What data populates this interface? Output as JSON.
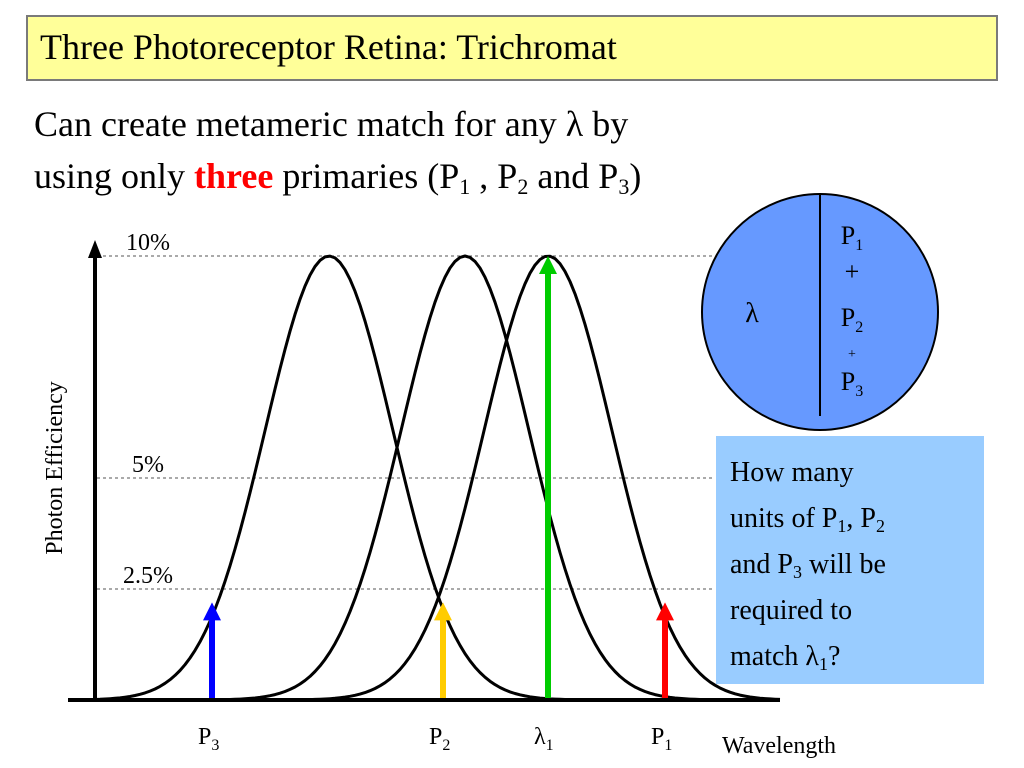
{
  "slide": {
    "title": "Three Photoreceptor Retina:  Trichromat",
    "subtitle": {
      "line1_a": "Can create metameric match for any ",
      "line1_lambda": "λ",
      "line1_b": " by",
      "line2_a": "using only ",
      "line2_highlight": "three",
      "line2_b": " primaries (P",
      "sub1": "1",
      "line2_c": " , P",
      "sub2": "2",
      "line2_d": " and P",
      "sub3": "3",
      "line2_e": ")"
    },
    "question": {
      "l1": "How many",
      "l2_a": "units of P",
      "l2_s1": "1",
      "l2_b": ", P",
      "l2_s2": "2",
      "l3_a": "and P",
      "l3_s3": "3",
      "l3_b": " will be",
      "l4": "required to",
      "l5_a": "match λ",
      "l5_s": "1",
      "l5_b": "?"
    }
  },
  "chart_data": {
    "type": "line",
    "ylabel": "Photon Efficiency",
    "xlabel": "Wavelength",
    "y_ticks": [
      {
        "value": 10,
        "label": "10%"
      },
      {
        "value": 5,
        "label": "5%"
      },
      {
        "value": 2.5,
        "label": "2.5%"
      }
    ],
    "series": [
      {
        "peak_y": 10
      },
      {
        "peak_y": 10
      },
      {
        "peak_y": 10
      }
    ],
    "markers": [
      {
        "name": "P3",
        "base": "P",
        "sub": "3",
        "value": 2.2,
        "color": "#0000ff"
      },
      {
        "name": "P2",
        "base": "P",
        "sub": "2",
        "value": 2.2,
        "color": "#ffcc00"
      },
      {
        "name": "λ1",
        "base": "λ",
        "sub": "1",
        "value": 10,
        "color": "#00cc00"
      },
      {
        "name": "P1",
        "base": "P",
        "sub": "1",
        "value": 2.2,
        "color": "#ff0000"
      }
    ]
  },
  "match_circle": {
    "left": "λ",
    "right": [
      {
        "base": "P",
        "sub": "1"
      },
      {
        "base": "+"
      },
      {
        "base": "P",
        "sub": "2"
      },
      {
        "base": "+"
      },
      {
        "base": "P",
        "sub": "3"
      }
    ],
    "fill": "#6699ff"
  }
}
